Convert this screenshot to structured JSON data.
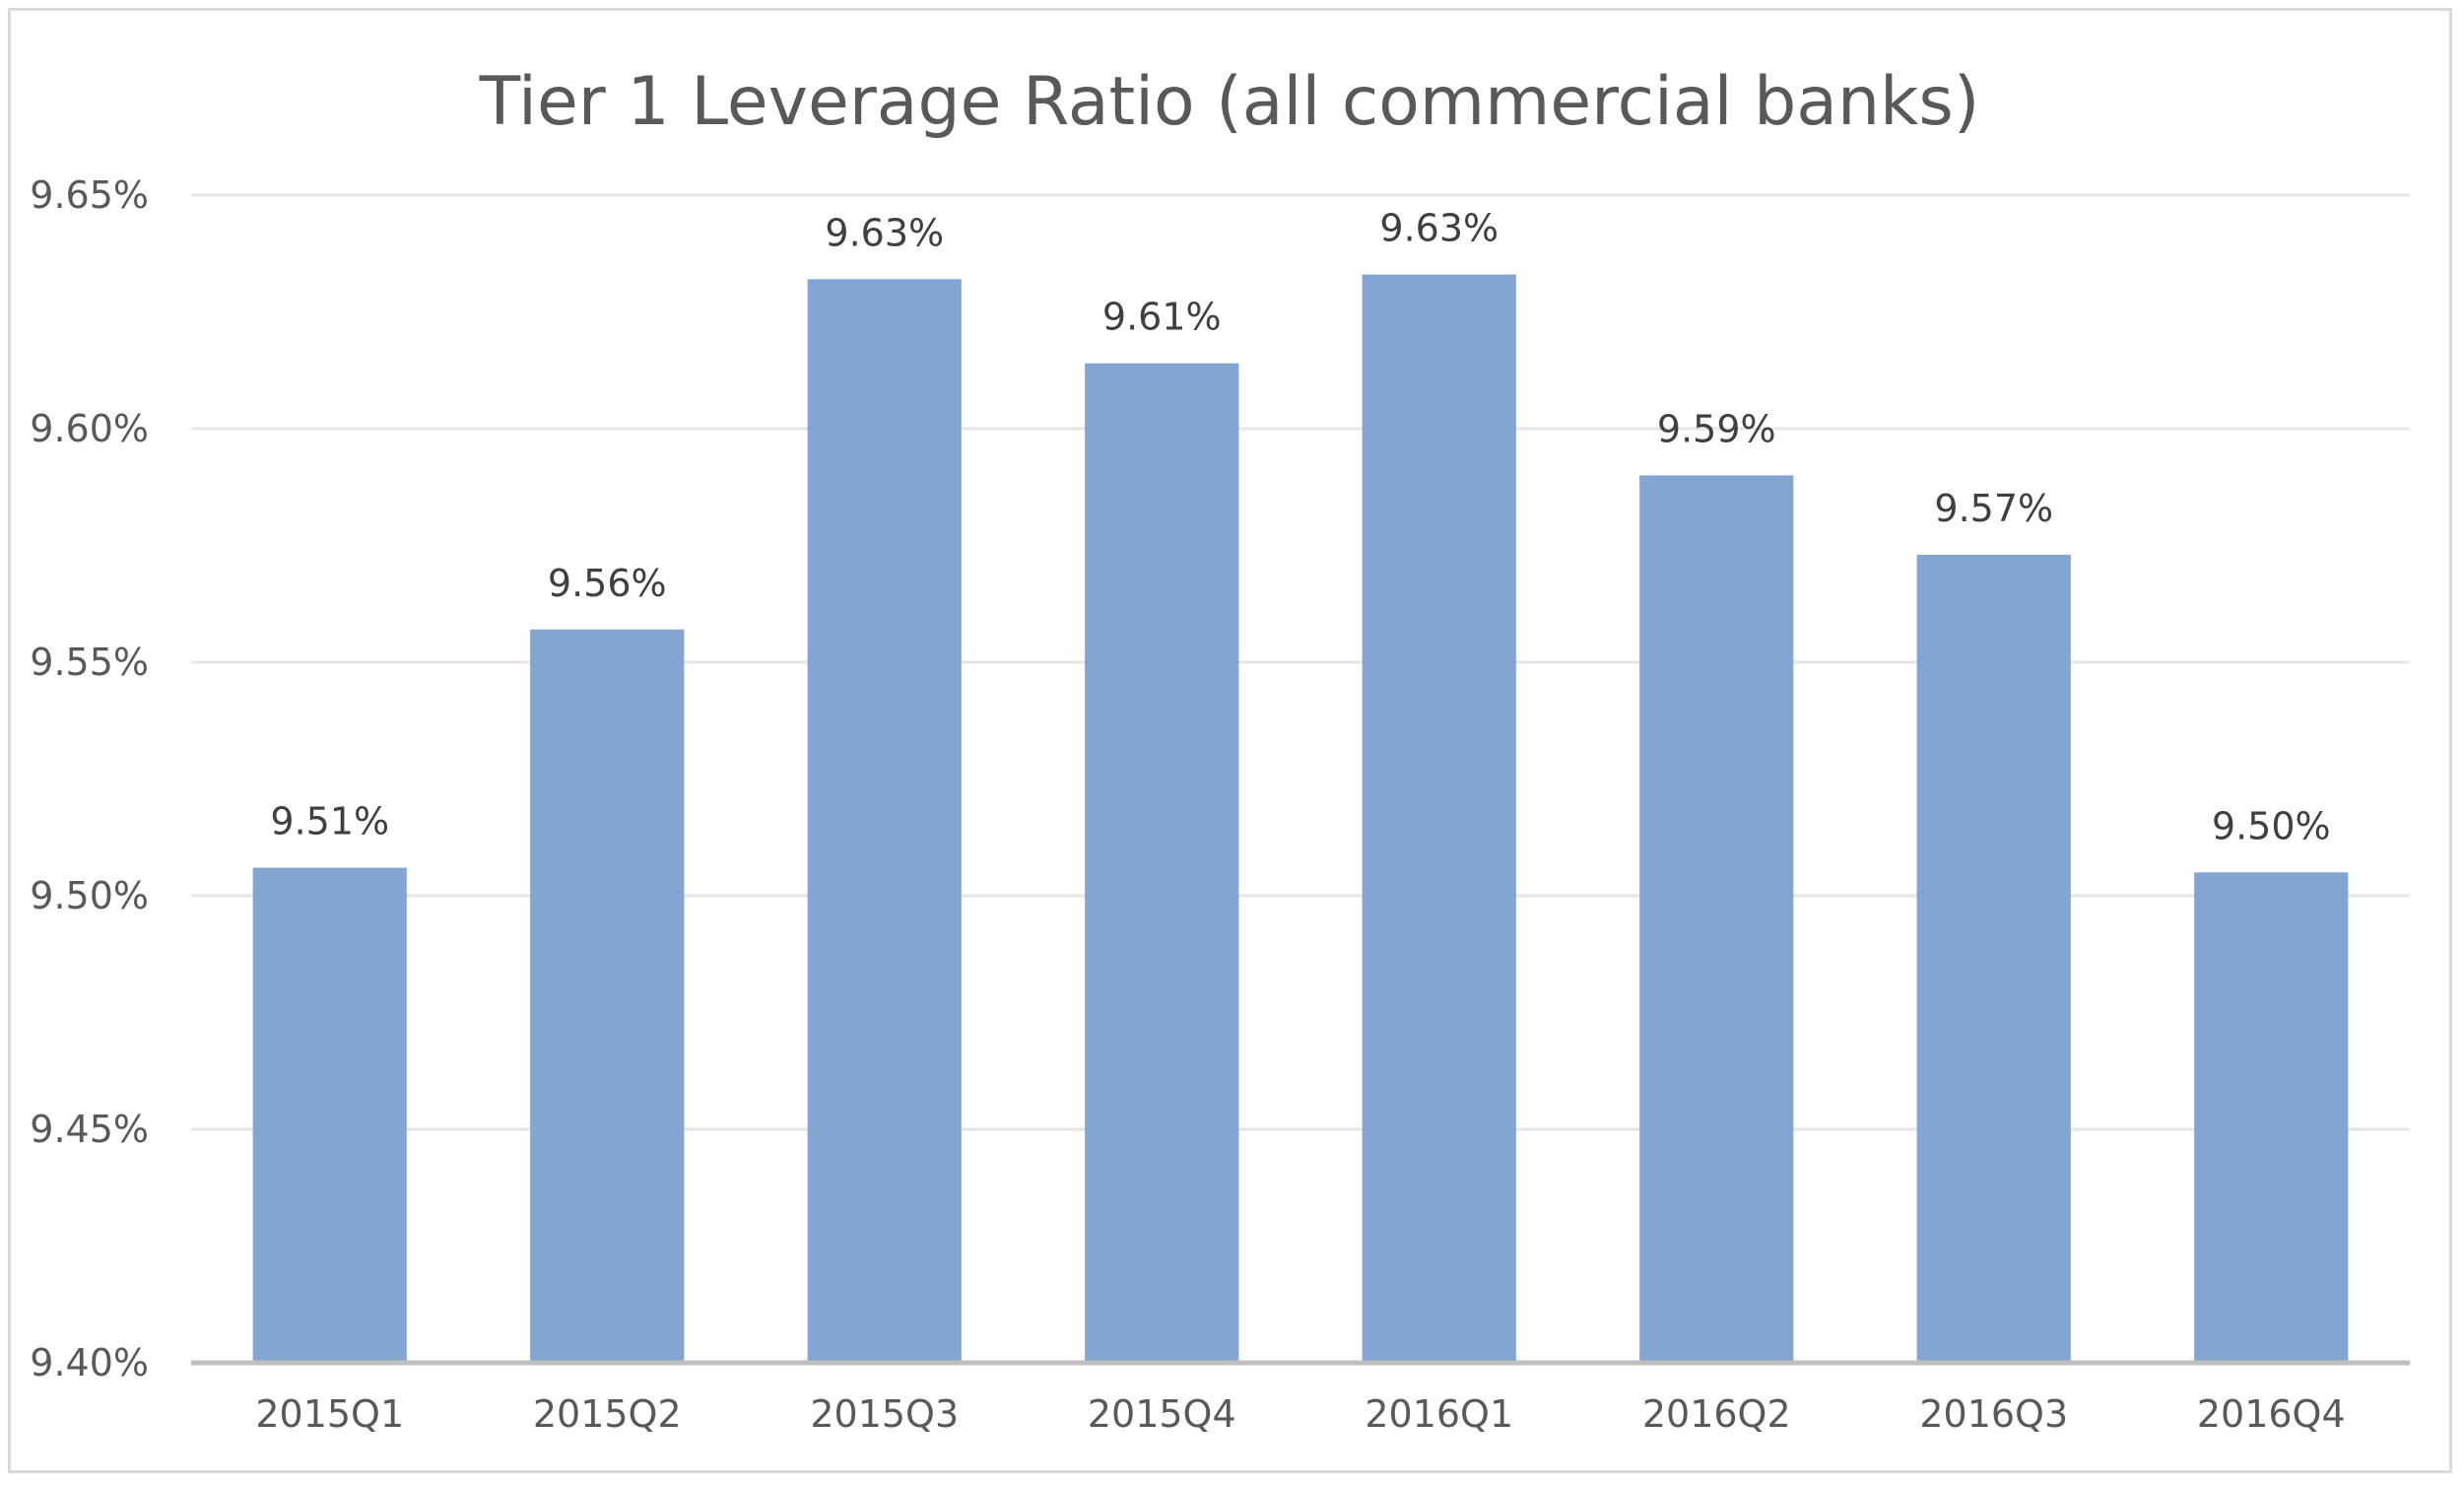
{
  "chart_data": {
    "type": "bar",
    "title": "Tier 1 Leverage Ratio (all commercial banks)",
    "xlabel": "",
    "ylabel": "",
    "categories": [
      "2015Q1",
      "2015Q2",
      "2015Q3",
      "2015Q4",
      "2016Q1",
      "2016Q2",
      "2016Q3",
      "2016Q4"
    ],
    "values": [
      9.506,
      9.557,
      9.632,
      9.614,
      9.633,
      9.59,
      9.573,
      9.505
    ],
    "data_labels": [
      "9.51%",
      "9.56%",
      "9.63%",
      "9.61%",
      "9.63%",
      "9.59%",
      "9.57%",
      "9.50%"
    ],
    "ylim": [
      9.4,
      9.65
    ],
    "yticks": [
      9.4,
      9.45,
      9.5,
      9.55,
      9.6,
      9.65
    ],
    "ytick_labels": [
      "9.40%",
      "9.45%",
      "9.50%",
      "9.55%",
      "9.60%",
      "9.65%"
    ],
    "bar_color": "#82a6d1",
    "grid": true,
    "legend": "none"
  }
}
